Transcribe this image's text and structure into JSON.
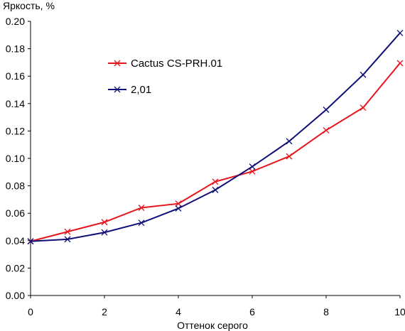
{
  "chart_data": {
    "type": "line",
    "title": "",
    "ylabel": "Яркость, %",
    "xlabel": "Оттенок серого",
    "xlim": [
      0,
      10
    ],
    "ylim": [
      0,
      0.2
    ],
    "xticks": [
      0,
      2,
      4,
      6,
      8,
      10
    ],
    "yticks": [
      0.0,
      0.02,
      0.04,
      0.06,
      0.08,
      0.1,
      0.12,
      0.14,
      0.16,
      0.18,
      0.2
    ],
    "ytick_labels": [
      "0.00",
      "0.02",
      "0.04",
      "0.06",
      "0.08",
      "0.10",
      "0.12",
      "0.14",
      "0.16",
      "0.18",
      "0.20"
    ],
    "xtick_labels": [
      "0",
      "2",
      "4",
      "6",
      "8",
      "10"
    ],
    "grid": false,
    "legend_position": "top-left-inside",
    "x": [
      0,
      1,
      2,
      3,
      4,
      5,
      6,
      7,
      8,
      9,
      10
    ],
    "series": [
      {
        "name": "Cactus CS-PRH.01",
        "color": "#e8141c",
        "marker": "x",
        "values": [
          0.0395,
          0.0465,
          0.0535,
          0.064,
          0.067,
          0.083,
          0.0905,
          0.1015,
          0.1205,
          0.137,
          0.1695
        ]
      },
      {
        "name": "2,01",
        "color": "#0f0f7a",
        "marker": "x",
        "values": [
          0.0395,
          0.041,
          0.046,
          0.053,
          0.0635,
          0.077,
          0.094,
          0.1125,
          0.1355,
          0.161,
          0.1915
        ]
      }
    ]
  }
}
